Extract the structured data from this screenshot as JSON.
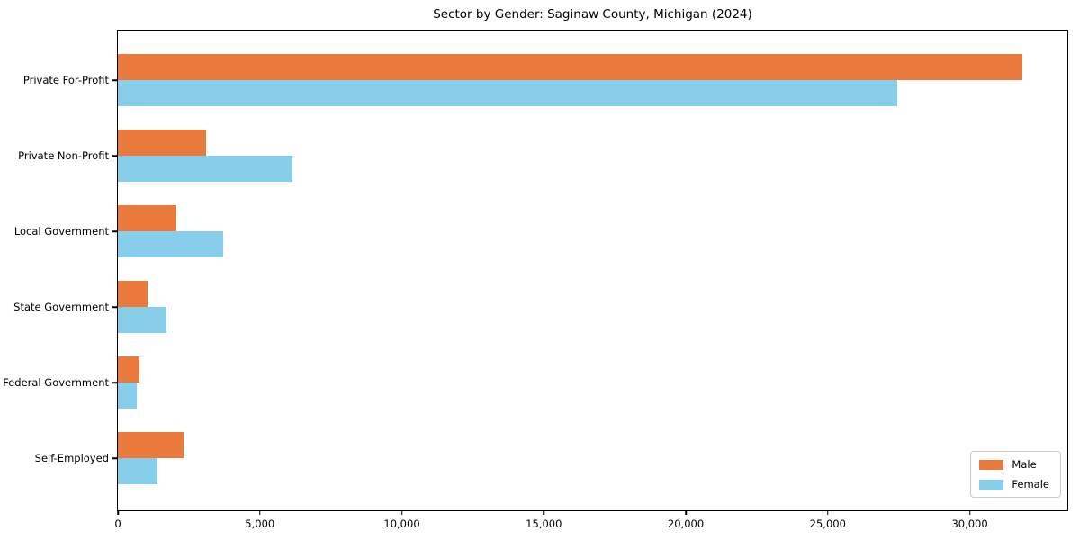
{
  "title": "Sector by Gender: Saginaw County, Michigan (2024)",
  "colors": {
    "male": "#EA7A3C",
    "female": "#87CEEB",
    "axis": "#000000",
    "legend_border": "#cccccc",
    "background": "#ffffff"
  },
  "chart_data": {
    "type": "bar",
    "orientation": "horizontal",
    "title": "Sector by Gender: Saginaw County, Michigan (2024)",
    "xlabel": "",
    "ylabel": "",
    "categories": [
      "Private For-Profit",
      "Private Non-Profit",
      "Local Government",
      "State Government",
      "Federal Government",
      "Self-Employed"
    ],
    "series": [
      {
        "name": "Male",
        "color": "#EA7A3C",
        "values": [
          31850,
          3100,
          2050,
          1050,
          750,
          2300
        ]
      },
      {
        "name": "Female",
        "color": "#87CEEB",
        "values": [
          27450,
          6150,
          3700,
          1700,
          650,
          1400
        ]
      }
    ],
    "xlim": [
      0,
      33500
    ],
    "x_ticks": [
      {
        "value": 0,
        "label": "0"
      },
      {
        "value": 5000,
        "label": "5,000"
      },
      {
        "value": 10000,
        "label": "10,000"
      },
      {
        "value": 15000,
        "label": "15,000"
      },
      {
        "value": 20000,
        "label": "20,000"
      },
      {
        "value": 25000,
        "label": "25,000"
      },
      {
        "value": 30000,
        "label": "30,000"
      }
    ],
    "grid": false,
    "legend_position": "lower right",
    "legend_entries": [
      "Male",
      "Female"
    ]
  }
}
